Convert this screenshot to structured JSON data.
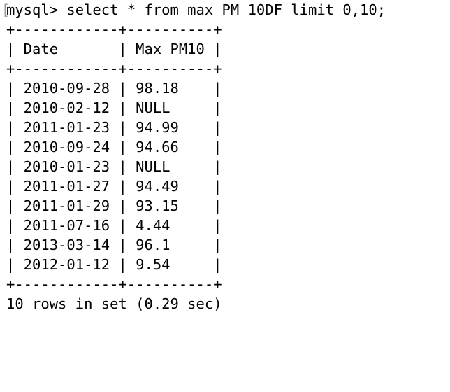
{
  "terminal": {
    "prompt": "mysql> select * from max_PM_10DF limit 0,10;",
    "border": "+------------+----------+",
    "header": "| Date       | Max_PM10 |",
    "rows": [
      "| 2010-09-28 | 98.18    |",
      "| 2010-02-12 | NULL     |",
      "| 2011-01-23 | 94.99    |",
      "| 2010-09-24 | 94.66    |",
      "| 2010-01-23 | NULL     |",
      "| 2011-01-27 | 94.49    |",
      "| 2011-01-29 | 93.15    |",
      "| 2011-07-16 | 4.44     |",
      "| 2013-03-14 | 96.1     |",
      "| 2012-01-12 | 9.54     |"
    ],
    "status": "10 rows in set (0.29 sec)"
  }
}
